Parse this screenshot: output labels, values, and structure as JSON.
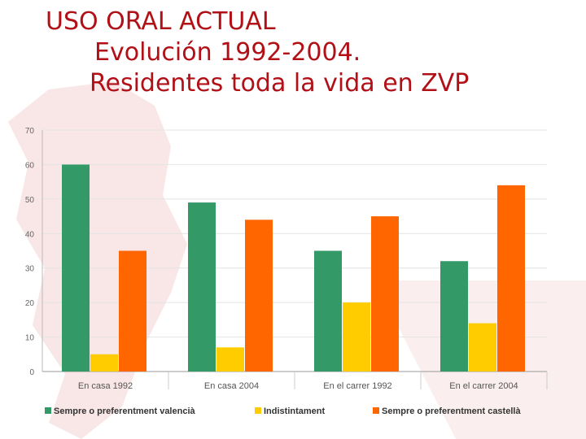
{
  "title": {
    "line1": "USO ORAL ACTUAL",
    "line2": "Evolución 1992-2004.",
    "line3": "Residentes toda la vida en ZVP"
  },
  "chart_data": {
    "type": "bar",
    "categories": [
      "En casa 1992",
      "En casa 2004",
      "En el carrer 1992",
      "En el carrer 2004"
    ],
    "series": [
      {
        "name": "Sempre o preferentment valencià",
        "color": "#339966",
        "values": [
          60,
          49,
          35,
          32
        ]
      },
      {
        "name": "Indistintament",
        "color": "#ffcc00",
        "values": [
          5,
          7,
          20,
          14
        ]
      },
      {
        "name": "Sempre o preferentment castellà",
        "color": "#ff6600",
        "values": [
          35,
          44,
          45,
          54
        ]
      }
    ],
    "ylim": [
      0,
      70
    ],
    "yticks": [
      0,
      10,
      20,
      30,
      40,
      50,
      60,
      70
    ],
    "grid": true,
    "legend": "bottom",
    "xlabel": "",
    "ylabel": ""
  },
  "colors": {
    "title": "#b01016",
    "watermark": "#f6dcdc",
    "grid": "#e4e4e4"
  }
}
